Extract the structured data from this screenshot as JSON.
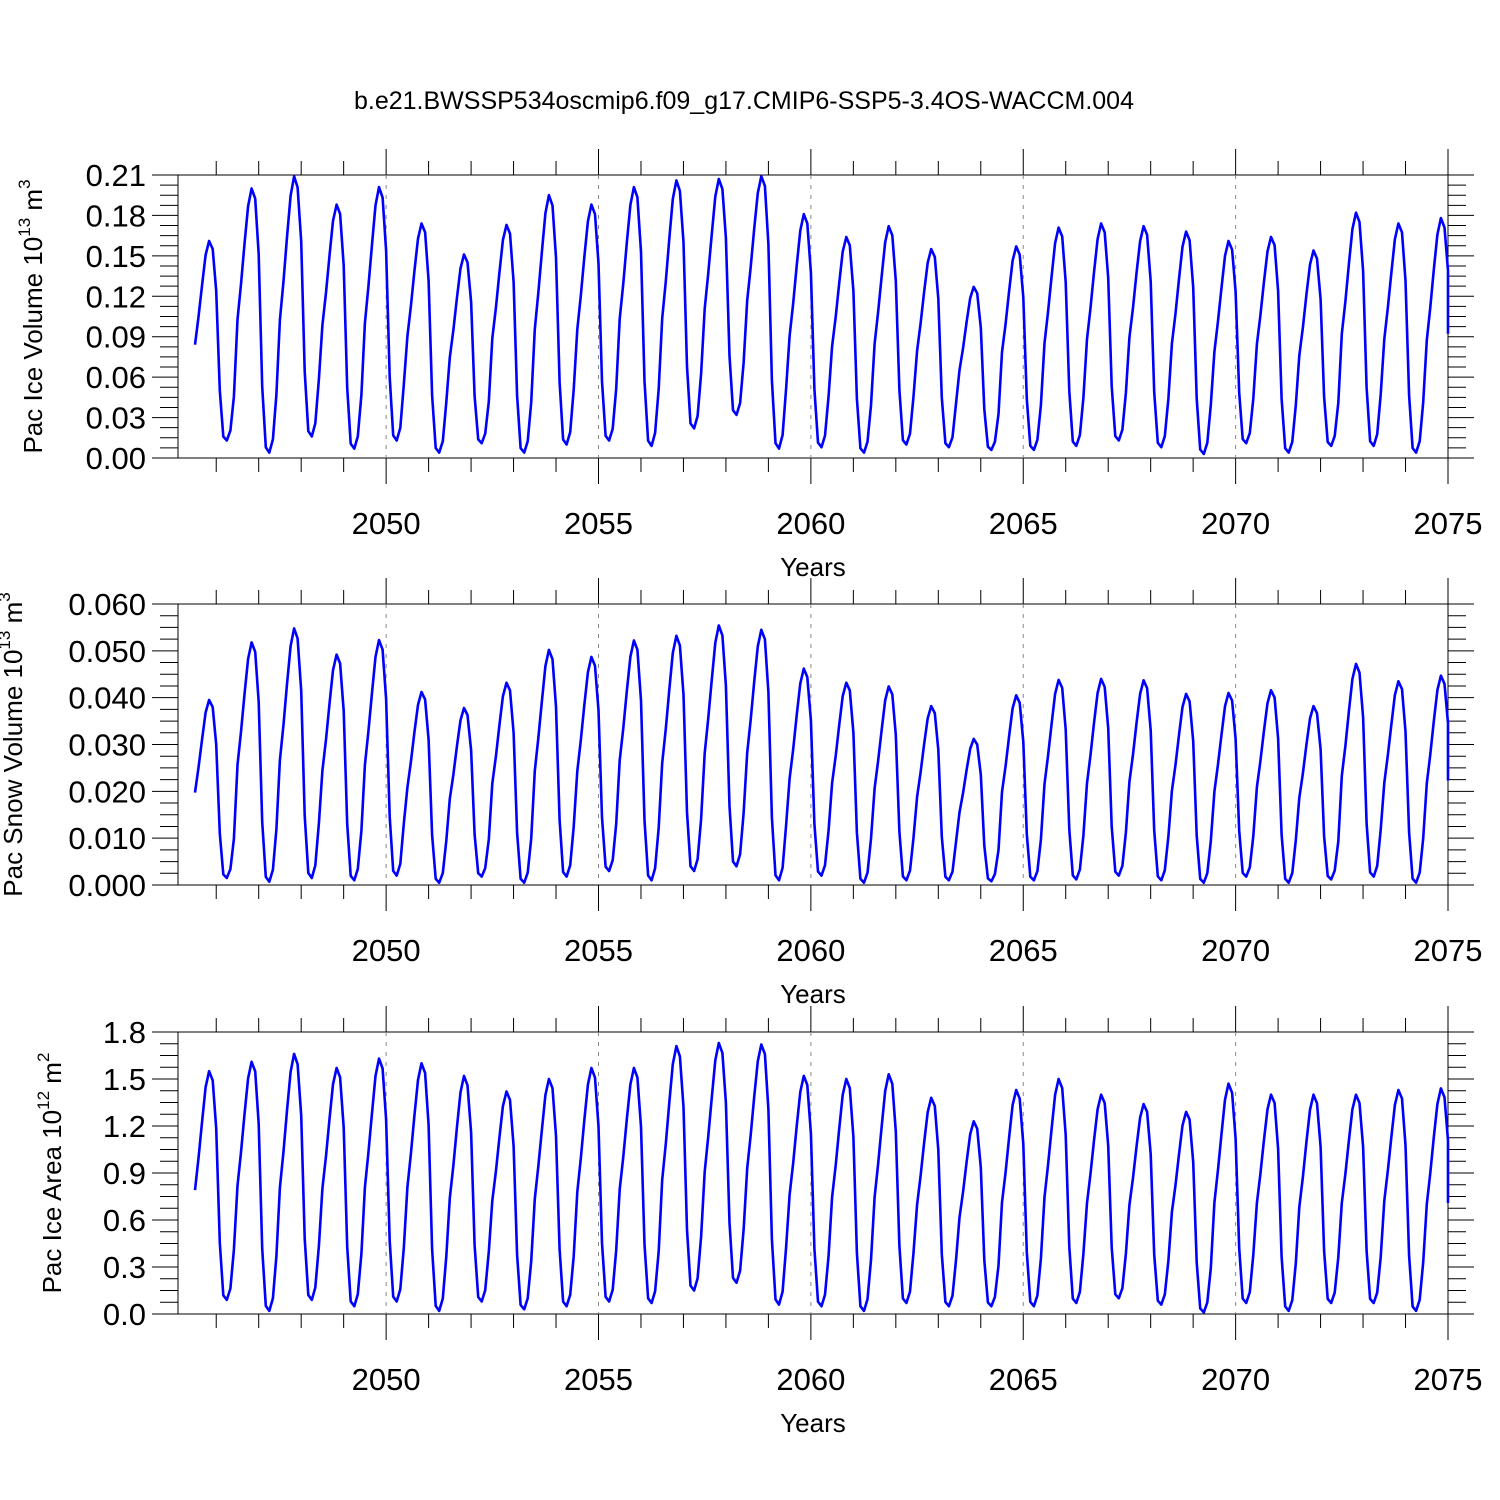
{
  "figure": {
    "title": "b.e21.BWSSP534oscmip6.f09_g17.CMIP6-SSP5-3.4OS-WACCM.004"
  },
  "chart_data": [
    {
      "type": "line",
      "name": "ice-volume",
      "ylabel_main": "Pac Ice Volume 10",
      "ylabel_exp": "13",
      "ylabel_unit": " m",
      "ylabel_unit_exp": "3",
      "xlabel": "Years",
      "xlim": [
        2045.1,
        2075.0
      ],
      "ylim": [
        0.0,
        0.21
      ],
      "yticks": [
        0.0,
        0.03,
        0.06,
        0.09,
        0.12,
        0.15,
        0.18,
        0.21
      ],
      "ytick_labels": [
        "0.00",
        "0.03",
        "0.06",
        "0.09",
        "0.12",
        "0.15",
        "0.18",
        "0.21"
      ],
      "xticks": [
        2050,
        2055,
        2060,
        2065,
        2070,
        2075
      ],
      "xtick_labels": [
        "2050",
        "2055",
        "2060",
        "2065",
        "2070",
        "2075"
      ],
      "series_color": "#0000ff",
      "annual": {
        "years": [
          2045,
          2046,
          2047,
          2048,
          2049,
          2050,
          2051,
          2052,
          2053,
          2054,
          2055,
          2056,
          2057,
          2058,
          2059,
          2060,
          2061,
          2062,
          2063,
          2064,
          2065,
          2066,
          2067,
          2068,
          2069,
          2070,
          2071,
          2072,
          2073,
          2074
        ],
        "peak": [
          0.161,
          0.2,
          0.209,
          0.188,
          0.201,
          0.174,
          0.151,
          0.173,
          0.195,
          0.188,
          0.201,
          0.206,
          0.207,
          0.209,
          0.181,
          0.164,
          0.172,
          0.155,
          0.127,
          0.157,
          0.171,
          0.174,
          0.172,
          0.168,
          0.161,
          0.164,
          0.154,
          0.182,
          0.174,
          0.178
        ],
        "min": [
          0.013,
          0.004,
          0.016,
          0.007,
          0.013,
          0.004,
          0.011,
          0.004,
          0.01,
          0.013,
          0.009,
          0.022,
          0.032,
          0.007,
          0.008,
          0.004,
          0.01,
          0.008,
          0.006,
          0.006,
          0.009,
          0.013,
          0.008,
          0.003,
          0.011,
          0.004,
          0.009,
          0.009,
          0.004,
          0.022
        ]
      }
    },
    {
      "type": "line",
      "name": "snow-volume",
      "ylabel_main": "Pac Snow Volume 10",
      "ylabel_exp": "13",
      "ylabel_unit": " m",
      "ylabel_unit_exp": "3",
      "xlabel": "Years",
      "xlim": [
        2045.1,
        2075.0
      ],
      "ylim": [
        0.0,
        0.06
      ],
      "yticks": [
        0.0,
        0.01,
        0.02,
        0.03,
        0.04,
        0.05,
        0.06
      ],
      "ytick_labels": [
        "0.000",
        "0.010",
        "0.020",
        "0.030",
        "0.040",
        "0.050",
        "0.060"
      ],
      "xticks": [
        2050,
        2055,
        2060,
        2065,
        2070,
        2075
      ],
      "xtick_labels": [
        "2050",
        "2055",
        "2060",
        "2065",
        "2070",
        "2075"
      ],
      "series_color": "#0000ff",
      "annual": {
        "years": [
          2045,
          2046,
          2047,
          2048,
          2049,
          2050,
          2051,
          2052,
          2053,
          2054,
          2055,
          2056,
          2057,
          2058,
          2059,
          2060,
          2061,
          2062,
          2063,
          2064,
          2065,
          2066,
          2067,
          2068,
          2069,
          2070,
          2071,
          2072,
          2073,
          2074
        ],
        "peak": [
          0.0395,
          0.0518,
          0.0548,
          0.0492,
          0.0523,
          0.0412,
          0.0378,
          0.0432,
          0.0502,
          0.0487,
          0.0522,
          0.0532,
          0.0554,
          0.0545,
          0.0462,
          0.0432,
          0.0424,
          0.0382,
          0.0312,
          0.0405,
          0.0438,
          0.044,
          0.0437,
          0.0408,
          0.041,
          0.0416,
          0.0382,
          0.0472,
          0.0435,
          0.0447
        ],
        "min": [
          0.0015,
          0.0007,
          0.0015,
          0.001,
          0.002,
          0.0005,
          0.0018,
          0.0005,
          0.0018,
          0.003,
          0.001,
          0.003,
          0.004,
          0.001,
          0.002,
          0.0005,
          0.001,
          0.001,
          0.0008,
          0.001,
          0.0012,
          0.002,
          0.001,
          0.0005,
          0.0018,
          0.0005,
          0.0012,
          0.0018,
          0.0005,
          0.004
        ]
      }
    },
    {
      "type": "line",
      "name": "ice-area",
      "ylabel_main": "Pac Ice Area 10",
      "ylabel_exp": "12",
      "ylabel_unit": " m",
      "ylabel_unit_exp": "2",
      "xlabel": "Years",
      "xlim": [
        2045.1,
        2075.0
      ],
      "ylim": [
        0.0,
        1.8
      ],
      "yticks": [
        0.0,
        0.3,
        0.6,
        0.9,
        1.2,
        1.5,
        1.8
      ],
      "ytick_labels": [
        "0.0",
        "0.3",
        "0.6",
        "0.9",
        "1.2",
        "1.5",
        "1.8"
      ],
      "xticks": [
        2050,
        2055,
        2060,
        2065,
        2070,
        2075
      ],
      "xtick_labels": [
        "2050",
        "2055",
        "2060",
        "2065",
        "2070",
        "2075"
      ],
      "series_color": "#0000ff",
      "annual": {
        "years": [
          2045,
          2046,
          2047,
          2048,
          2049,
          2050,
          2051,
          2052,
          2053,
          2054,
          2055,
          2056,
          2057,
          2058,
          2059,
          2060,
          2061,
          2062,
          2063,
          2064,
          2065,
          2066,
          2067,
          2068,
          2069,
          2070,
          2071,
          2072,
          2073,
          2074
        ],
        "peak": [
          1.55,
          1.61,
          1.66,
          1.57,
          1.63,
          1.6,
          1.52,
          1.42,
          1.5,
          1.57,
          1.57,
          1.71,
          1.73,
          1.72,
          1.52,
          1.5,
          1.53,
          1.38,
          1.23,
          1.43,
          1.5,
          1.4,
          1.34,
          1.29,
          1.47,
          1.4,
          1.4,
          1.4,
          1.43,
          1.44
        ],
        "min": [
          0.09,
          0.02,
          0.09,
          0.05,
          0.08,
          0.02,
          0.08,
          0.03,
          0.05,
          0.08,
          0.07,
          0.15,
          0.2,
          0.06,
          0.05,
          0.02,
          0.07,
          0.05,
          0.05,
          0.05,
          0.07,
          0.1,
          0.06,
          0.01,
          0.07,
          0.02,
          0.07,
          0.07,
          0.02,
          0.11
        ]
      }
    }
  ]
}
